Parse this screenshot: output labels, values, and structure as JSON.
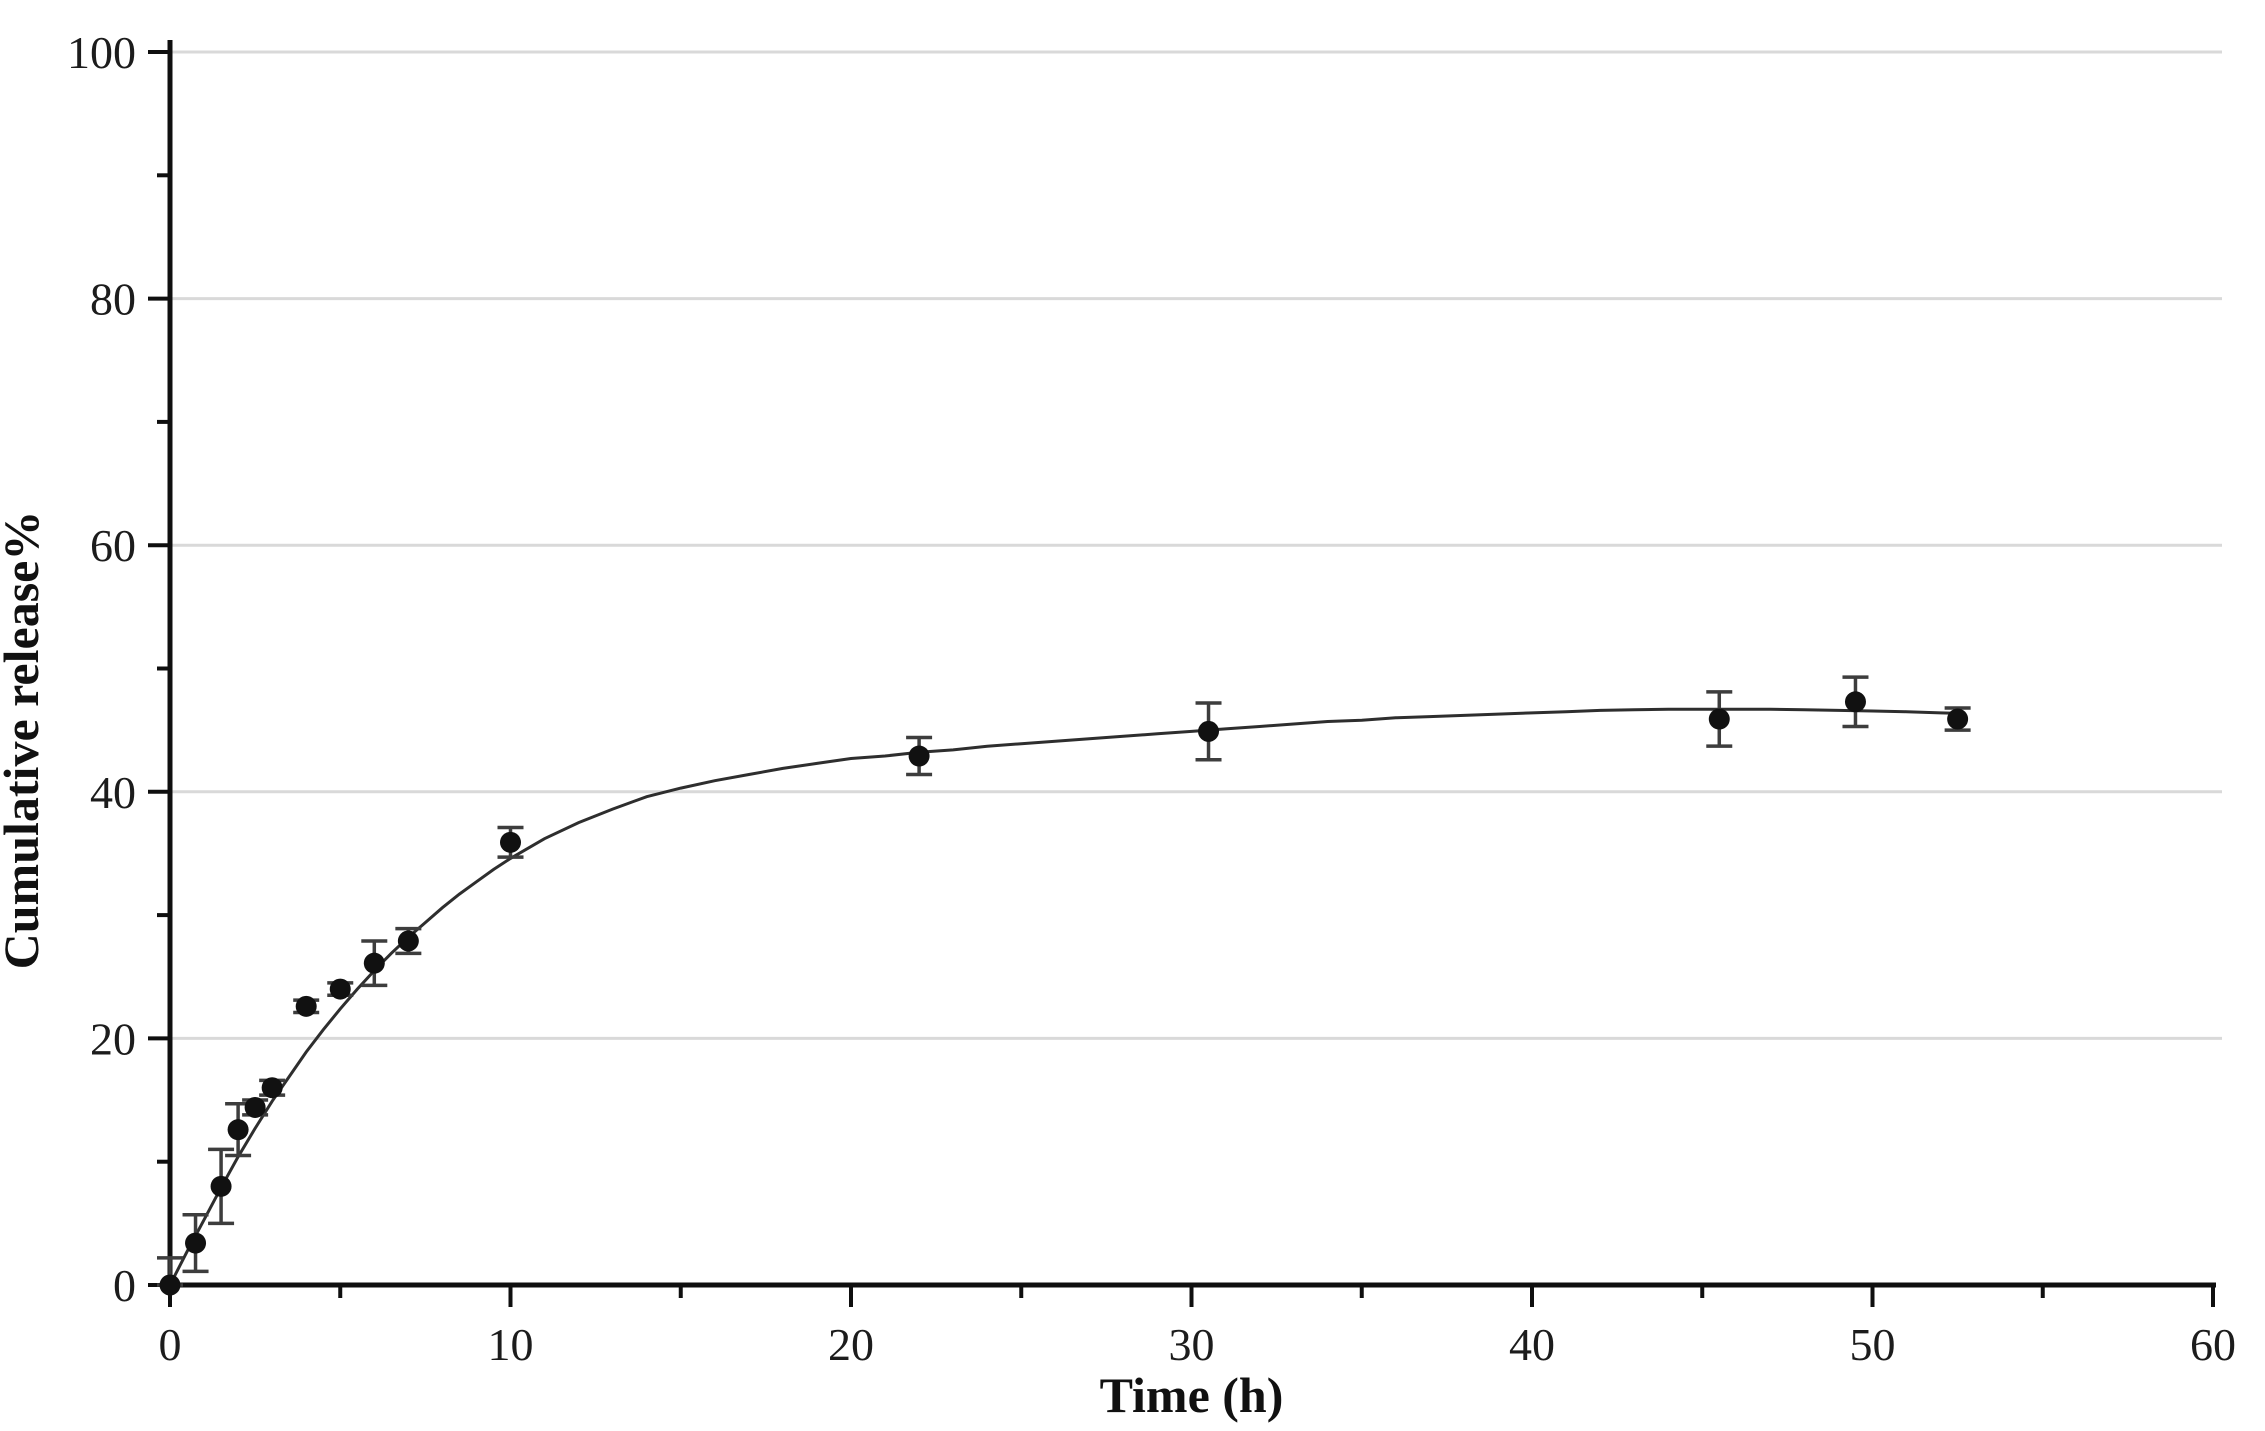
{
  "figure": {
    "background_color": "#ffffff",
    "plot_border": "none"
  },
  "chart_data": {
    "type": "scatter",
    "title": "",
    "xlabel": "Time (h)",
    "ylabel": "Cumulative release%",
    "xlim": [
      0,
      60
    ],
    "ylim": [
      0,
      100
    ],
    "x_major_ticks": [
      0,
      10,
      20,
      30,
      40,
      50,
      60
    ],
    "x_major_tick_labels": [
      "0",
      "10",
      "20",
      "30",
      "40",
      "50",
      "60"
    ],
    "x_minor_ticks": [
      5,
      15,
      25,
      35,
      45,
      55
    ],
    "y_major_ticks": [
      0,
      20,
      40,
      60,
      80,
      100
    ],
    "y_major_tick_labels": [
      "0",
      "20",
      "40",
      "60",
      "80",
      "100"
    ],
    "y_minor_ticks": [
      10,
      30,
      50,
      70,
      90
    ],
    "grid": {
      "show": true,
      "y_values": [
        20,
        40,
        60,
        80,
        100
      ],
      "color": "#d9d9d9"
    },
    "legend": null,
    "colors": {
      "axis": "#0f0f0f",
      "marker": "#111111",
      "error_bar": "#3d3d3d",
      "curve": "#2e2e2e",
      "tick_label": "#1c1c1c"
    },
    "series": [
      {
        "name": "cumulative-release",
        "marker": "filled-circle",
        "points": [
          {
            "x": 0,
            "y": 0,
            "err": 2.2
          },
          {
            "x": 0.75,
            "y": 3.4,
            "err": 2.3
          },
          {
            "x": 1.5,
            "y": 8.0,
            "err": 3.0
          },
          {
            "x": 2.0,
            "y": 12.6,
            "err": 2.1
          },
          {
            "x": 2.5,
            "y": 14.4,
            "err": 0.6
          },
          {
            "x": 3.0,
            "y": 16.0,
            "err": 0.6
          },
          {
            "x": 4.0,
            "y": 22.6,
            "err": 0.5
          },
          {
            "x": 5.0,
            "y": 24.0,
            "err": 0.5
          },
          {
            "x": 6.0,
            "y": 26.1,
            "err": 1.8
          },
          {
            "x": 7.0,
            "y": 27.9,
            "err": 1.0
          },
          {
            "x": 10.0,
            "y": 35.9,
            "err": 1.2
          },
          {
            "x": 22.0,
            "y": 42.9,
            "err": 1.5
          },
          {
            "x": 30.5,
            "y": 44.9,
            "err": 2.3
          },
          {
            "x": 45.5,
            "y": 45.9,
            "err": 2.2
          },
          {
            "x": 49.5,
            "y": 47.3,
            "err": 2.0
          },
          {
            "x": 52.5,
            "y": 45.9,
            "err": 0.9
          }
        ]
      }
    ],
    "fit_curve": {
      "description": "fitted release curve, rises steeply then plateaus near 46.7 around t=44 h with slight decline at end",
      "points": [
        [
          0,
          0
        ],
        [
          0.5,
          2.7
        ],
        [
          1,
          5.3
        ],
        [
          1.5,
          7.9
        ],
        [
          2,
          10.4
        ],
        [
          2.5,
          12.7
        ],
        [
          3,
          14.9
        ],
        [
          3.5,
          16.9
        ],
        [
          4,
          18.9
        ],
        [
          4.5,
          20.7
        ],
        [
          5,
          22.4
        ],
        [
          5.5,
          24.0
        ],
        [
          6,
          25.5
        ],
        [
          6.5,
          26.9
        ],
        [
          7,
          28.2
        ],
        [
          7.5,
          29.4
        ],
        [
          8,
          30.6
        ],
        [
          8.5,
          31.7
        ],
        [
          9,
          32.7
        ],
        [
          9.5,
          33.7
        ],
        [
          10,
          34.6
        ],
        [
          11,
          36.2
        ],
        [
          12,
          37.5
        ],
        [
          13,
          38.6
        ],
        [
          14,
          39.6
        ],
        [
          15,
          40.3
        ],
        [
          16,
          40.9
        ],
        [
          17,
          41.4
        ],
        [
          18,
          41.9
        ],
        [
          19,
          42.3
        ],
        [
          20,
          42.7
        ],
        [
          21,
          42.9
        ],
        [
          22,
          43.2
        ],
        [
          23,
          43.4
        ],
        [
          24,
          43.7
        ],
        [
          25,
          43.9
        ],
        [
          26,
          44.1
        ],
        [
          27,
          44.3
        ],
        [
          28,
          44.5
        ],
        [
          29,
          44.7
        ],
        [
          30,
          44.9
        ],
        [
          31,
          45.1
        ],
        [
          32,
          45.3
        ],
        [
          33,
          45.5
        ],
        [
          34,
          45.7
        ],
        [
          35,
          45.8
        ],
        [
          36,
          46.0
        ],
        [
          37,
          46.1
        ],
        [
          38,
          46.2
        ],
        [
          39,
          46.3
        ],
        [
          40,
          46.4
        ],
        [
          41,
          46.5
        ],
        [
          42,
          46.6
        ],
        [
          43,
          46.65
        ],
        [
          44,
          46.7
        ],
        [
          45,
          46.7
        ],
        [
          46,
          46.7
        ],
        [
          47,
          46.7
        ],
        [
          48,
          46.65
        ],
        [
          49,
          46.6
        ],
        [
          50,
          46.55
        ],
        [
          51,
          46.5
        ],
        [
          52,
          46.4
        ],
        [
          52.7,
          46.35
        ]
      ]
    }
  }
}
